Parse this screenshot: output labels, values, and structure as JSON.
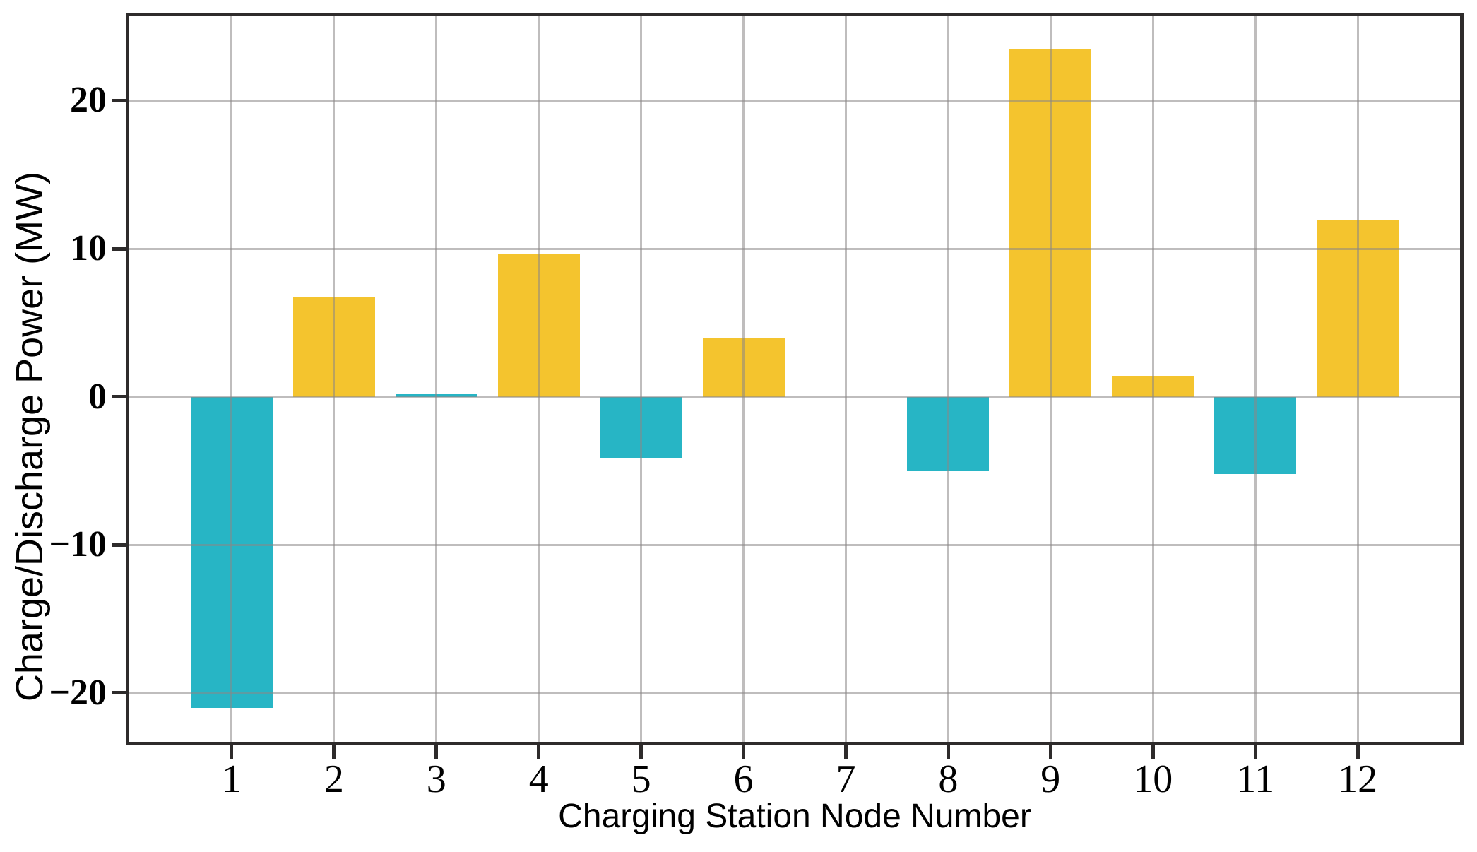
{
  "chart_data": {
    "type": "bar",
    "title": "",
    "xlabel": "Charging Station Node Number",
    "ylabel": "Charge/Discharge Power (MW)",
    "categories": [
      1,
      2,
      3,
      4,
      5,
      6,
      7,
      8,
      9,
      10,
      11,
      12
    ],
    "values": [
      -21.0,
      6.7,
      0.2,
      9.6,
      -4.1,
      4.0,
      0.0,
      -5.0,
      23.5,
      1.4,
      -5.2,
      11.9
    ],
    "bar_color_keys": [
      "discharge",
      "charge",
      "discharge",
      "charge",
      "discharge",
      "charge",
      "none",
      "discharge",
      "charge",
      "charge",
      "discharge",
      "charge"
    ],
    "palette": {
      "charge": "#F4C42E",
      "discharge": "#27B5C5"
    },
    "colors": {
      "grid": "#8A8686",
      "spine": "#2E2B2B",
      "background": "#FFFFFF",
      "text": "#000000"
    },
    "xlim": [
      0,
      13
    ],
    "ylim": [
      -23.3,
      25.7
    ],
    "bar_width_units": 0.8,
    "grid": "on",
    "legend_position": "none",
    "y_ticks": [
      {
        "value": 20,
        "label": "20"
      },
      {
        "value": 10,
        "label": "10"
      },
      {
        "value": 0,
        "label": "0"
      },
      {
        "value": -10,
        "label": "−10"
      },
      {
        "value": -20,
        "label": "−20"
      }
    ],
    "x_ticks": [
      {
        "value": 1,
        "label": "1"
      },
      {
        "value": 2,
        "label": "2"
      },
      {
        "value": 3,
        "label": "3"
      },
      {
        "value": 4,
        "label": "4"
      },
      {
        "value": 5,
        "label": "5"
      },
      {
        "value": 6,
        "label": "6"
      },
      {
        "value": 7,
        "label": "7"
      },
      {
        "value": 8,
        "label": "8"
      },
      {
        "value": 9,
        "label": "9"
      },
      {
        "value": 10,
        "label": "10"
      },
      {
        "value": 11,
        "label": "11"
      },
      {
        "value": 12,
        "label": "12"
      }
    ]
  }
}
